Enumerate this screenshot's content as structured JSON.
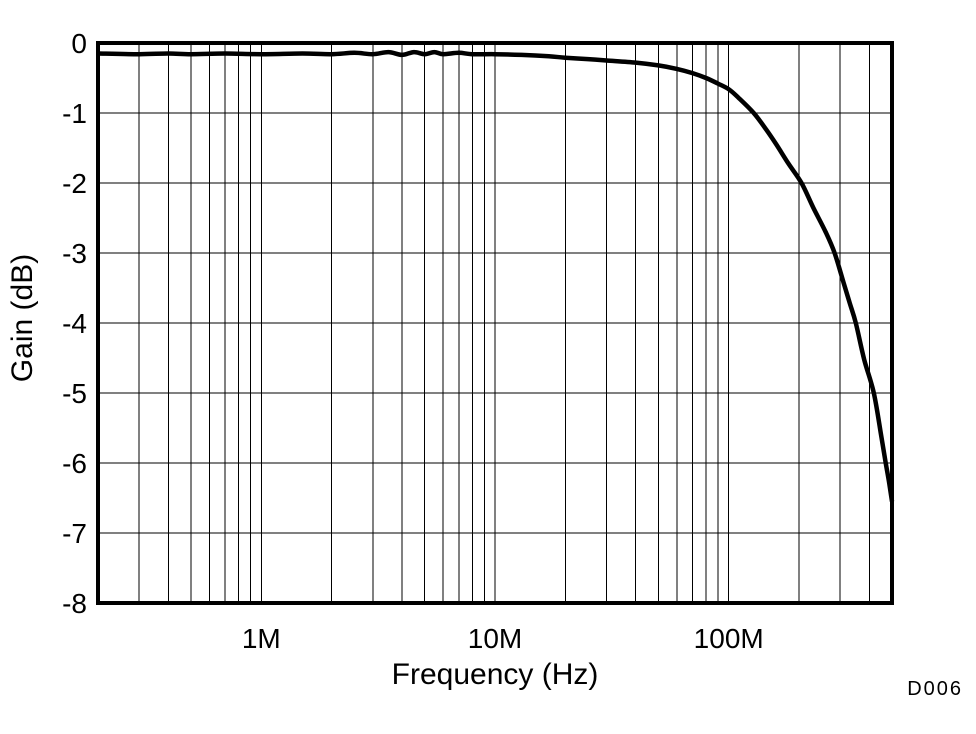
{
  "chart_data": {
    "type": "line",
    "title": "",
    "xlabel": "Frequency (Hz)",
    "ylabel": "Gain (dB)",
    "x_scale": "log",
    "xlim": [
      200000.0,
      500000000.0
    ],
    "ylim": [
      -8,
      0
    ],
    "x_ticks": [
      {
        "value": 1000000.0,
        "label": "1M"
      },
      {
        "value": 10000000.0,
        "label": "10M"
      },
      {
        "value": 100000000.0,
        "label": "100M"
      }
    ],
    "y_ticks": [
      {
        "value": 0,
        "label": "0"
      },
      {
        "value": -1,
        "label": "-1"
      },
      {
        "value": -2,
        "label": "-2"
      },
      {
        "value": -3,
        "label": "-3"
      },
      {
        "value": -4,
        "label": "-4"
      },
      {
        "value": -5,
        "label": "-5"
      },
      {
        "value": -6,
        "label": "-6"
      },
      {
        "value": -7,
        "label": "-7"
      },
      {
        "value": -8,
        "label": "-8"
      }
    ],
    "grid": {
      "show": true,
      "color": "#000000",
      "line_width": 1,
      "x_minor_multiples": [
        2,
        3,
        4,
        5,
        6,
        7,
        8,
        9
      ],
      "y_step": 1
    },
    "legend": "none",
    "border_color": "#000000",
    "line_color": "#000000",
    "line_width": 4.5,
    "annotation": "D006",
    "annotation_color": "#9a9da1",
    "series": [
      {
        "name": "Gain",
        "points": [
          [
            200000.0,
            -0.15
          ],
          [
            300000.0,
            -0.16
          ],
          [
            400000.0,
            -0.15
          ],
          [
            500000.0,
            -0.16
          ],
          [
            700000.0,
            -0.15
          ],
          [
            1000000.0,
            -0.16
          ],
          [
            1500000.0,
            -0.15
          ],
          [
            2000000.0,
            -0.16
          ],
          [
            2500000.0,
            -0.14
          ],
          [
            3000000.0,
            -0.16
          ],
          [
            3500000.0,
            -0.13
          ],
          [
            4000000.0,
            -0.17
          ],
          [
            4500000.0,
            -0.13
          ],
          [
            5000000.0,
            -0.16
          ],
          [
            5500000.0,
            -0.13
          ],
          [
            6000000.0,
            -0.16
          ],
          [
            7000000.0,
            -0.14
          ],
          [
            8000000.0,
            -0.16
          ],
          [
            10000000.0,
            -0.16
          ],
          [
            13000000.0,
            -0.17
          ],
          [
            17000000.0,
            -0.19
          ],
          [
            20000000.0,
            -0.21
          ],
          [
            25000000.0,
            -0.23
          ],
          [
            30000000.0,
            -0.25
          ],
          [
            40000000.0,
            -0.28
          ],
          [
            50000000.0,
            -0.32
          ],
          [
            60000000.0,
            -0.37
          ],
          [
            70000000.0,
            -0.43
          ],
          [
            80000000.0,
            -0.5
          ],
          [
            90000000.0,
            -0.58
          ],
          [
            100000000.0,
            -0.66
          ],
          [
            110000000.0,
            -0.78
          ],
          [
            128000000.0,
            -1.0
          ],
          [
            145000000.0,
            -1.24
          ],
          [
            160000000.0,
            -1.45
          ],
          [
            180000000.0,
            -1.72
          ],
          [
            205000000.0,
            -2.0
          ],
          [
            230000000.0,
            -2.35
          ],
          [
            260000000.0,
            -2.7
          ],
          [
            284000000.0,
            -3.0
          ],
          [
            310000000.0,
            -3.42
          ],
          [
            330000000.0,
            -3.72
          ],
          [
            350000000.0,
            -4.0
          ],
          [
            380000000.0,
            -4.52
          ],
          [
            418000000.0,
            -5.0
          ],
          [
            450000000.0,
            -5.62
          ],
          [
            470000000.0,
            -6.0
          ],
          [
            485000000.0,
            -6.26
          ],
          [
            500000000.0,
            -6.55
          ]
        ]
      }
    ]
  }
}
